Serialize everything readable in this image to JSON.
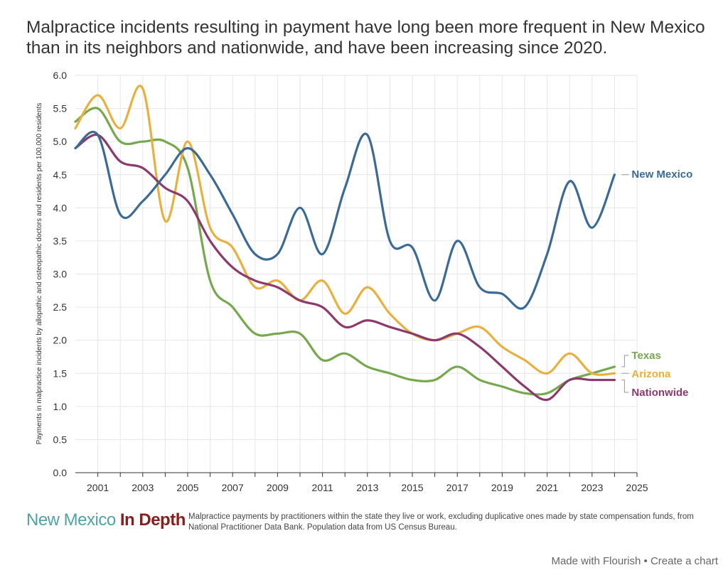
{
  "title": "Malpractice incidents resulting in payment have long been more frequent in New Mexico than in its neighbors and nationwide, and have been increasing since 2020.",
  "chart_data": {
    "type": "line",
    "title": "Malpractice incidents resulting in payment have long been more frequent in New Mexico than in its neighbors and nationwide, and have been increasing since 2020.",
    "ylabel": "Payments in malpractice incidents by allopathic and osteopathic doctors and residents  per 100,000 residents",
    "xlabel": "",
    "xlim": [
      2000,
      2025
    ],
    "ylim": [
      0,
      6
    ],
    "x_ticks": [
      "2001",
      "2003",
      "2005",
      "2007",
      "2009",
      "2011",
      "2013",
      "2015",
      "2017",
      "2019",
      "2021",
      "2023",
      "2025"
    ],
    "y_ticks": [
      "0.0",
      "0.5",
      "1.0",
      "1.5",
      "2.0",
      "2.5",
      "3.0",
      "3.5",
      "4.0",
      "4.5",
      "5.0",
      "5.5",
      "6.0"
    ],
    "grid": true,
    "legend": "right-end labels",
    "x": [
      2000,
      2001,
      2002,
      2003,
      2004,
      2005,
      2006,
      2007,
      2008,
      2009,
      2010,
      2011,
      2012,
      2013,
      2014,
      2015,
      2016,
      2017,
      2018,
      2019,
      2020,
      2021,
      2022,
      2023,
      2024
    ],
    "series": [
      {
        "name": "New Mexico",
        "color": "#3b6a94",
        "values": [
          4.9,
          5.1,
          3.9,
          4.1,
          4.5,
          4.9,
          4.5,
          3.9,
          3.3,
          3.3,
          4.0,
          3.3,
          4.3,
          5.1,
          3.5,
          3.4,
          2.6,
          3.5,
          2.8,
          2.7,
          2.5,
          3.3,
          4.4,
          3.7,
          4.5
        ]
      },
      {
        "name": "Texas",
        "color": "#76a84d",
        "values": [
          5.3,
          5.5,
          5.0,
          5.0,
          5.0,
          4.6,
          2.9,
          2.5,
          2.1,
          2.1,
          2.1,
          1.7,
          1.8,
          1.6,
          1.5,
          1.4,
          1.4,
          1.6,
          1.4,
          1.3,
          1.2,
          1.2,
          1.4,
          1.5,
          1.6
        ]
      },
      {
        "name": "Arizona",
        "color": "#e8b03d",
        "values": [
          5.2,
          5.7,
          5.2,
          5.8,
          3.8,
          5.0,
          3.7,
          3.4,
          2.8,
          2.9,
          2.6,
          2.9,
          2.4,
          2.8,
          2.4,
          2.1,
          2.0,
          2.1,
          2.2,
          1.9,
          1.7,
          1.5,
          1.8,
          1.5,
          1.5
        ]
      },
      {
        "name": "Nationwide",
        "color": "#8b3a6b",
        "values": [
          4.9,
          5.1,
          4.7,
          4.6,
          4.3,
          4.1,
          3.5,
          3.1,
          2.9,
          2.8,
          2.6,
          2.5,
          2.2,
          2.3,
          2.2,
          2.1,
          2.0,
          2.1,
          1.9,
          1.6,
          1.3,
          1.1,
          1.4,
          1.4,
          1.4
        ]
      }
    ]
  },
  "footer": {
    "brand_part1": "New Mexico ",
    "brand_part2": "In Depth",
    "source": "Malpractice payments by practitioners within the state they live or work, excluding duplicative ones made by state compensation funds, from National Practitioner Data Bank. Population data from US Census Bureau."
  },
  "credit": {
    "made_with": "Made with Flourish",
    "separator": " • ",
    "create": "Create a chart"
  }
}
